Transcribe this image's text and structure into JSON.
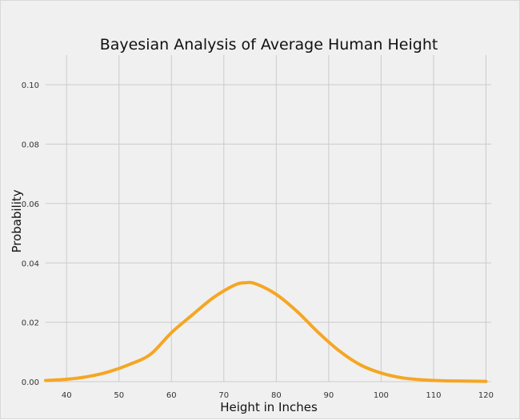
{
  "chart_data": {
    "type": "line",
    "title": "Bayesian Analysis of Average Human Height",
    "xlabel": "Height in Inches",
    "ylabel": "Probability",
    "xlim": [
      36,
      121
    ],
    "ylim": [
      0,
      0.11
    ],
    "xticks": [
      40,
      50,
      60,
      70,
      80,
      90,
      100,
      110,
      120
    ],
    "yticks": [
      0.0,
      0.02,
      0.04,
      0.06,
      0.08,
      0.1
    ],
    "ytick_labels": [
      "0.00",
      "0.02",
      "0.04",
      "0.06",
      "0.08",
      "0.10"
    ],
    "grid": true,
    "series": [
      {
        "color": "#f5a623",
        "x": [
          36,
          40,
          44,
          48,
          52,
          56,
          60,
          64,
          68,
          72,
          74,
          76,
          80,
          84,
          88,
          92,
          96,
          100,
          104,
          108,
          112,
          116,
          120
        ],
        "y": [
          0.0004,
          0.0008,
          0.0017,
          0.0033,
          0.0058,
          0.0092,
          0.0165,
          0.0225,
          0.0283,
          0.0325,
          0.0333,
          0.033,
          0.0294,
          0.0236,
          0.0166,
          0.0104,
          0.0057,
          0.0029,
          0.0013,
          0.0006,
          0.0003,
          0.0002,
          0.0001
        ]
      }
    ]
  }
}
